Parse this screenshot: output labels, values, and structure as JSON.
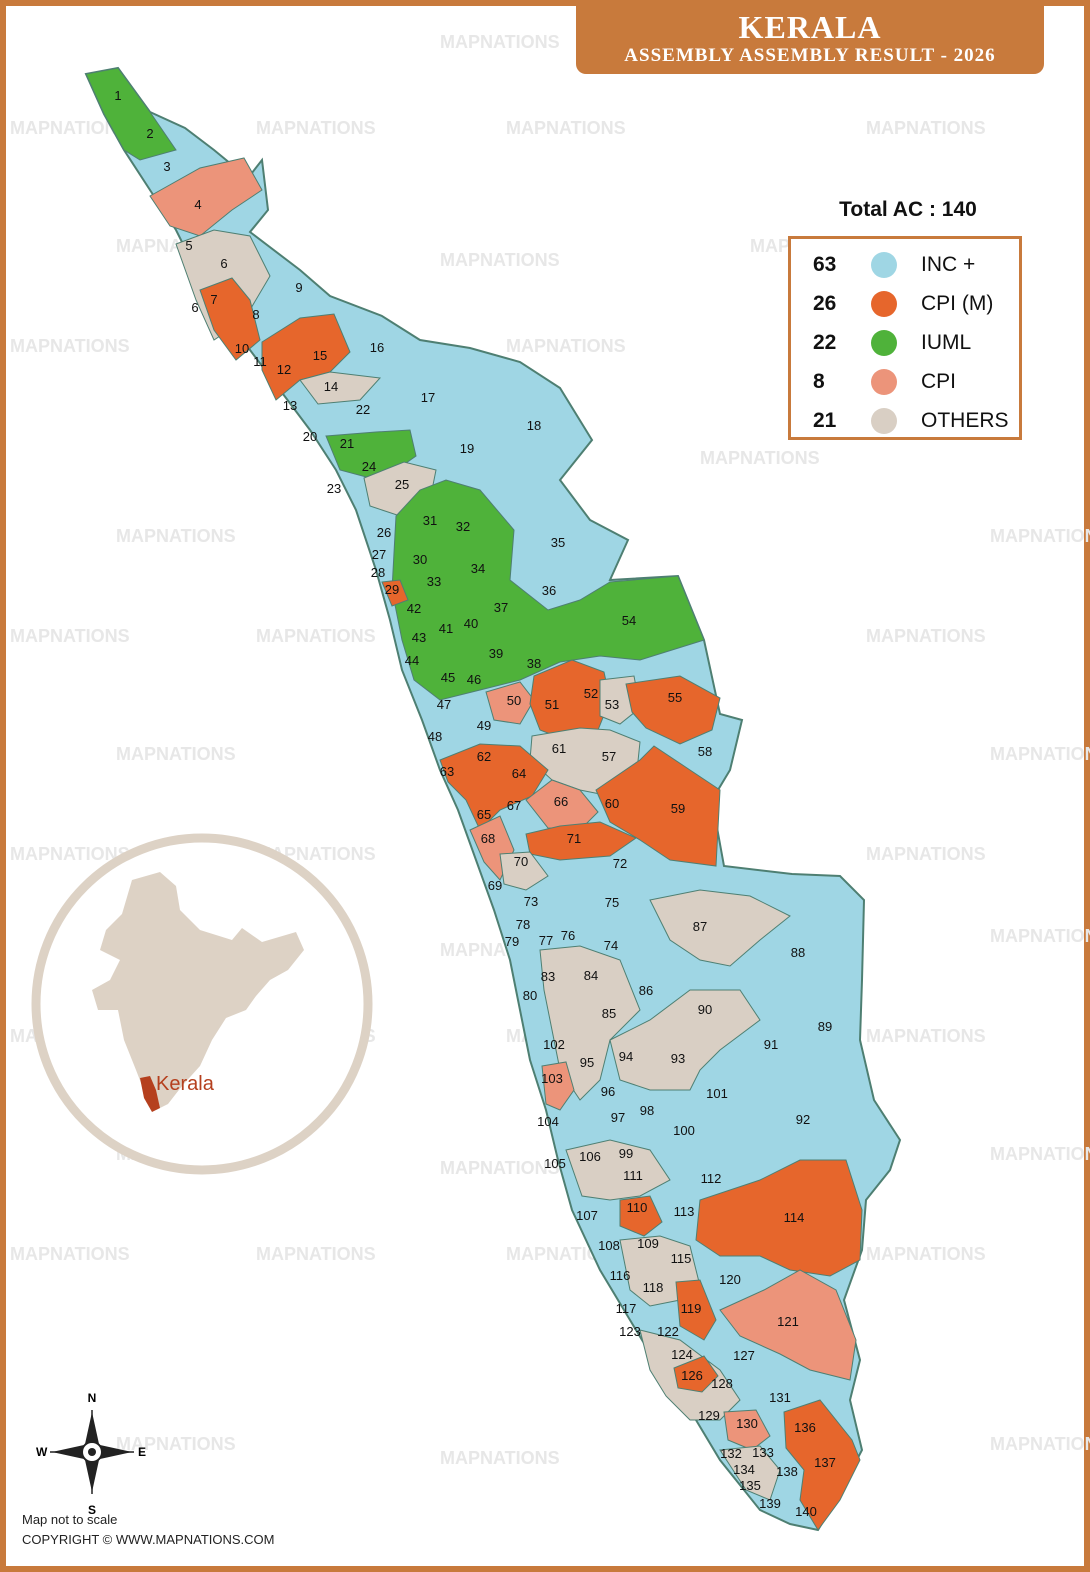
{
  "header": {
    "title": "KERALA",
    "subtitle": "ASSEMBLY ASSEMBLY RESULT - 2026"
  },
  "total_label": "Total AC : 140",
  "legend": [
    {
      "count": "63",
      "label": "INC +",
      "color": "#9fd6e4"
    },
    {
      "count": "26",
      "label": "CPI (M)",
      "color": "#e6662c"
    },
    {
      "count": "22",
      "label": "IUML",
      "color": "#4fb23a"
    },
    {
      "count": "8",
      "label": "CPI",
      "color": "#ec947a"
    },
    {
      "count": "21",
      "label": "OTHERS",
      "color": "#d9cfc4"
    }
  ],
  "watermark": "MAPNATIONS",
  "inset": {
    "label": "Kerala",
    "highlight_color": "#b5401e",
    "india_color": "#ddd2c5"
  },
  "compass": {
    "n": "N",
    "s": "S",
    "e": "E",
    "w": "W"
  },
  "footer": {
    "note": "Map not to scale",
    "copyright": "COPYRIGHT © WWW.MAPNATIONS.COM"
  },
  "constituency_labels": [
    "1",
    "2",
    "3",
    "4",
    "5",
    "6",
    "6",
    "7",
    "8",
    "9",
    "10",
    "11",
    "12",
    "13",
    "14",
    "15",
    "16",
    "17",
    "18",
    "19",
    "20",
    "21",
    "22",
    "23",
    "24",
    "25",
    "26",
    "27",
    "28",
    "29",
    "30",
    "31",
    "32",
    "33",
    "34",
    "35",
    "36",
    "37",
    "38",
    "39",
    "40",
    "41",
    "42",
    "43",
    "44",
    "45",
    "46",
    "47",
    "48",
    "49",
    "50",
    "51",
    "52",
    "53",
    "54",
    "55",
    "57",
    "58",
    "59",
    "60",
    "61",
    "62",
    "63",
    "64",
    "65",
    "66",
    "67",
    "68",
    "69",
    "70",
    "71",
    "72",
    "73",
    "74",
    "75",
    "76",
    "77",
    "78",
    "79",
    "80",
    "83",
    "84",
    "85",
    "86",
    "87",
    "88",
    "89",
    "90",
    "91",
    "92",
    "93",
    "94",
    "95",
    "96",
    "97",
    "98",
    "99",
    "100",
    "101",
    "102",
    "103",
    "104",
    "105",
    "106",
    "107",
    "108",
    "109",
    "110",
    "111",
    "112",
    "113",
    "114",
    "115",
    "116",
    "117",
    "118",
    "119",
    "120",
    "121",
    "122",
    "123",
    "124",
    "126",
    "127",
    "128",
    "129",
    "130",
    "131",
    "132",
    "133",
    "134",
    "135",
    "136",
    "137",
    "138",
    "139",
    "140"
  ]
}
